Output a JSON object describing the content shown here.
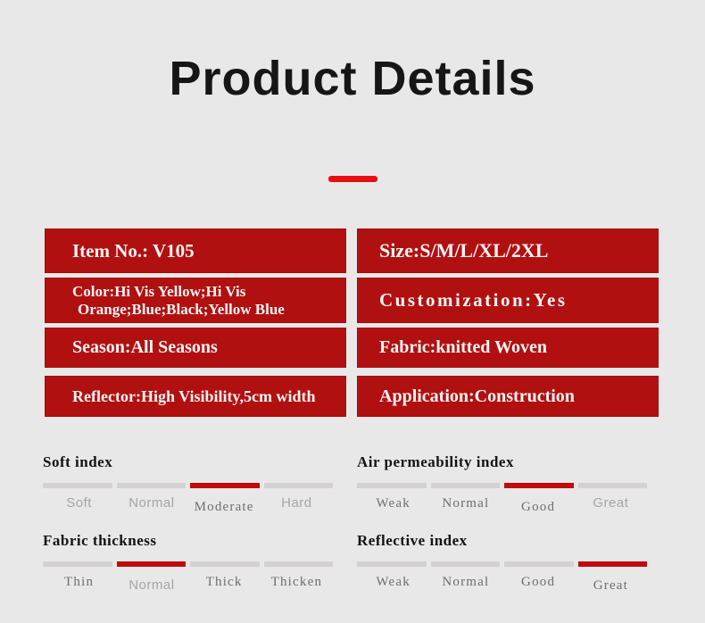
{
  "page": {
    "title": "Product Details",
    "colors": {
      "background": "#e9e8e8",
      "box_red": "#b11011",
      "dash_red": "#e8100f",
      "bar_red": "#c00b0b",
      "bar_gray": "#d3d1d1"
    }
  },
  "specs": {
    "item_no": "Item No.: V105",
    "color_line1": "Color:Hi Vis Yellow;Hi Vis",
    "color_line2": "Orange;Blue;Black;Yellow Blue",
    "season": "Season:All Seasons",
    "reflector": "Reflector:High Visibility,5cm width",
    "size": "Size:S/M/L/XL/2XL",
    "customization": "Customization:Yes",
    "fabric": "Fabric:knitted Woven",
    "application": "Application:Construction"
  },
  "indexes": {
    "soft": {
      "title": "Soft index",
      "selected": "Moderate",
      "labels": [
        {
          "text": "Soft",
          "style": "sans",
          "bar": "gray"
        },
        {
          "text": "Normal",
          "style": "sans",
          "bar": "gray"
        },
        {
          "text": "Moderate",
          "style": "serif selected",
          "bar": "red"
        },
        {
          "text": "Hard",
          "style": "sans",
          "bar": "gray"
        }
      ]
    },
    "air": {
      "title": "Air permeability index",
      "selected": "Good",
      "labels": [
        {
          "text": "Weak",
          "style": "serif",
          "bar": "gray"
        },
        {
          "text": "Normal",
          "style": "serif",
          "bar": "gray"
        },
        {
          "text": "Good",
          "style": "serif selected",
          "bar": "red"
        },
        {
          "text": "Great",
          "style": "sans",
          "bar": "gray"
        }
      ]
    },
    "thickness": {
      "title": "Fabric thickness",
      "selected": "Normal",
      "labels": [
        {
          "text": "Thin",
          "style": "serif",
          "bar": "gray"
        },
        {
          "text": "Normal",
          "style": "sans selected",
          "bar": "red"
        },
        {
          "text": "Thick",
          "style": "serif",
          "bar": "gray"
        },
        {
          "text": "Thicken",
          "style": "serif",
          "bar": "gray"
        }
      ]
    },
    "reflective": {
      "title": "Reflective index",
      "selected": "Great",
      "labels": [
        {
          "text": "Weak",
          "style": "serif",
          "bar": "gray"
        },
        {
          "text": "Normal",
          "style": "serif",
          "bar": "gray"
        },
        {
          "text": "Good",
          "style": "serif",
          "bar": "gray"
        },
        {
          "text": "Great",
          "style": "serif selected",
          "bar": "red"
        }
      ]
    }
  }
}
